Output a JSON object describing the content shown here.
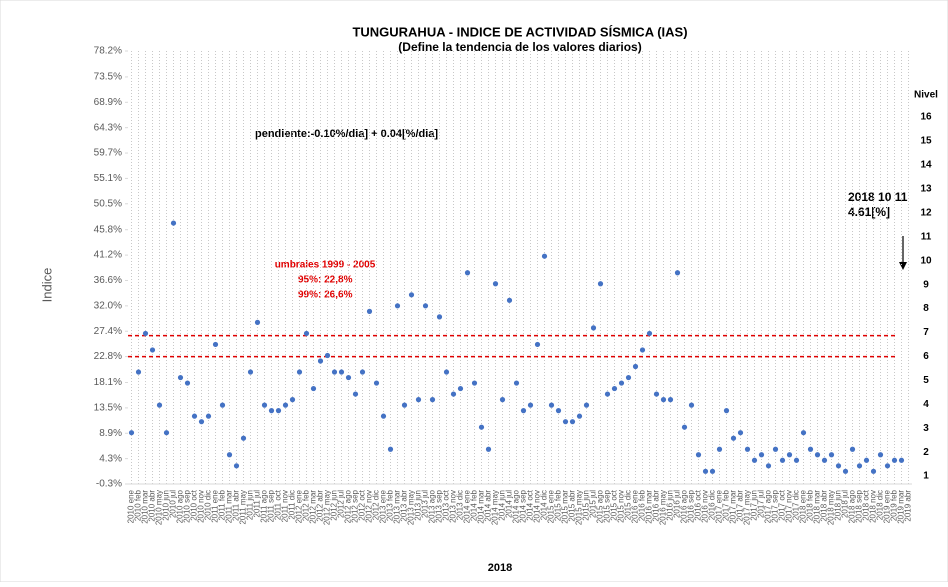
{
  "chart_data": {
    "type": "scatter",
    "title": "TUNGURAHUA - INDICE DE ACTIVIDAD SÍSMICA (IAS)",
    "subtitle": "(Define la tendencia de los valores diarios)",
    "y_label": "Indice",
    "x_label": "2018",
    "y2_label": "Nivel",
    "categories": [
      "2010 ene",
      "2010 feb",
      "2010 mar",
      "2010 abr",
      "2010 may",
      "2010 jun",
      "2010 jul",
      "2010 ago",
      "2010 sep",
      "2010 oct",
      "2010 nov",
      "2010 dic",
      "2011 ene",
      "2011 feb",
      "2011 mar",
      "2011 abr",
      "2011 may",
      "2011 jun",
      "2011 jul",
      "2011 ago",
      "2011 sep",
      "2011 oct",
      "2011 nov",
      "2011 dic",
      "2012 ene",
      "2012 feb",
      "2012 mar",
      "2012 abr",
      "2012 may",
      "2012 jun",
      "2012 jul",
      "2012 ago",
      "2012 sep",
      "2012 oct",
      "2012 nov",
      "2012 dic",
      "2013 ene",
      "2013 feb",
      "2013 mar",
      "2013 abr",
      "2013 may",
      "2013 jun",
      "2013 jul",
      "2013 ago",
      "2013 sep",
      "2013 oct",
      "2013 nov",
      "2013 dic",
      "2014 ene",
      "2014 feb",
      "2014 mar",
      "2014 abr",
      "2014 may",
      "2014 jun",
      "2014 jul",
      "2014 ago",
      "2014 sep",
      "2014 oct",
      "2014 nov",
      "2014 dic",
      "2015 ene",
      "2015 feb",
      "2015 mar",
      "2015 abr",
      "2015 may",
      "2015 jun",
      "2015 jul",
      "2015 ago",
      "2015 sep",
      "2015 oct",
      "2015 nov",
      "2015 dic",
      "2016 ene",
      "2016 feb",
      "2016 mar",
      "2016 abr",
      "2016 may",
      "2016 jun",
      "2016 jul",
      "2016 ago",
      "2016 sep",
      "2016 oct",
      "2016 nov",
      "2016 dic",
      "2017 ene",
      "2017 feb",
      "2017 mar",
      "2017 abr",
      "2017 may",
      "2017 jun",
      "2017 jul",
      "2017 ago",
      "2017 sep",
      "2017 oct",
      "2017 nov",
      "2017 dic",
      "2018 ene",
      "2018 feb",
      "2018 mar",
      "2018 abr",
      "2018 may",
      "2018 jun",
      "2018 jul",
      "2018 ago",
      "2018 sep",
      "2018 oct",
      "2018 nov",
      "2018 dic",
      "2019 ene",
      "2019 feb",
      "2019 mar",
      "2019 abr"
    ],
    "values": [
      9,
      20,
      27,
      24,
      14,
      9,
      47,
      19,
      18,
      12,
      11,
      12,
      25,
      14,
      5,
      3,
      8,
      20,
      29,
      14,
      13,
      13,
      14,
      15,
      20,
      27,
      17,
      22,
      23,
      20,
      20,
      19,
      16,
      20,
      31,
      18,
      12,
      6,
      32,
      14,
      34,
      15,
      32,
      15,
      30,
      20,
      16,
      17,
      38,
      18,
      10,
      6,
      36,
      15,
      33,
      18,
      13,
      14,
      25,
      41,
      14,
      13,
      11,
      11,
      12,
      14,
      28,
      36,
      16,
      17,
      18,
      19,
      21,
      24,
      27,
      16,
      15,
      15,
      38,
      10,
      14,
      5,
      2,
      2,
      6,
      13,
      8,
      9,
      6,
      4,
      5,
      3,
      6,
      4,
      5,
      4,
      9,
      6,
      5,
      4,
      5,
      3,
      2,
      6,
      3,
      4,
      2,
      5,
      3,
      4,
      4,
      null
    ],
    "color": "#4472c4",
    "ylim": [
      -0.3,
      78.2
    ],
    "yticks": [
      {
        "value": -0.3,
        "label": "-0.3%"
      },
      {
        "value": 4.3,
        "label": "4.3%"
      },
      {
        "value": 8.9,
        "label": "8.9%"
      },
      {
        "value": 13.5,
        "label": "13.5%"
      },
      {
        "value": 18.1,
        "label": "18.1%"
      },
      {
        "value": 22.8,
        "label": "22.8%"
      },
      {
        "value": 27.4,
        "label": "27.4%"
      },
      {
        "value": 32.0,
        "label": "32.0%"
      },
      {
        "value": 36.6,
        "label": "36.6%"
      },
      {
        "value": 41.2,
        "label": "41.2%"
      },
      {
        "value": 45.8,
        "label": "45.8%"
      },
      {
        "value": 50.5,
        "label": "50.5%"
      },
      {
        "value": 55.1,
        "label": "55.1%"
      },
      {
        "value": 59.7,
        "label": "59.7%"
      },
      {
        "value": 64.3,
        "label": "64.3%"
      },
      {
        "value": 68.9,
        "label": "68.9%"
      },
      {
        "value": 73.5,
        "label": "73.5%"
      },
      {
        "value": 78.2,
        "label": "78.2%"
      }
    ],
    "y2lim": [
      0.67,
      18.76
    ],
    "y2ticks": [
      1,
      2,
      3,
      4,
      5,
      6,
      7,
      8,
      9,
      10,
      11,
      12,
      13,
      14,
      15,
      16
    ],
    "thresholds": [
      22.8,
      26.6
    ],
    "threshold_color": "#e00000",
    "threshold_title": "umbrales 1999 - 2005",
    "threshold_labels": [
      "95%:   22,8%",
      "99%:   26,6%"
    ],
    "trend_note": "pendiente:-0.10%/dia] +  0.04[%/dia]",
    "last_date": "2018 10 11",
    "last_value": "4.61[%]",
    "grid": true
  }
}
